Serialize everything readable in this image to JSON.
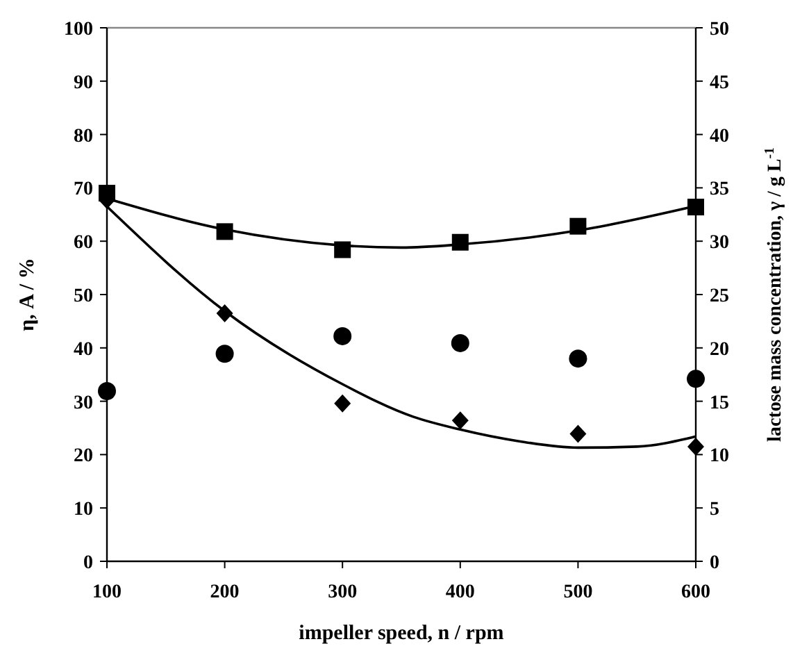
{
  "chart_data": {
    "type": "scatter",
    "xlabel": "impeller speed, n / rpm",
    "ylabel": "η, A / %",
    "y2label": "lactose mass concentration, γ / g L$^{-1}$",
    "x": [
      100,
      200,
      300,
      400,
      500,
      600
    ],
    "xlim": [
      100,
      600
    ],
    "xticks": [
      100,
      200,
      300,
      400,
      500,
      600
    ],
    "ylim": [
      0,
      100
    ],
    "yticks": [
      0,
      10,
      20,
      30,
      40,
      50,
      60,
      70,
      80,
      90,
      100
    ],
    "y2lim": [
      0,
      50
    ],
    "y2ticks": [
      0,
      5,
      10,
      15,
      20,
      25,
      30,
      35,
      40,
      45,
      50
    ],
    "grid": false,
    "series": [
      {
        "type": "scatter",
        "marker": "square",
        "color": "#000000",
        "axis": "y2",
        "values": [
          34.5,
          30.9,
          29.2,
          29.9,
          31.4,
          33.2
        ]
      },
      {
        "type": "scatter",
        "marker": "diamond",
        "color": "#000000",
        "values": [
          67.7,
          46.5,
          29.6,
          26.4,
          23.9,
          21.5
        ]
      },
      {
        "type": "scatter",
        "marker": "circle",
        "color": "#000000",
        "values": [
          31.9,
          38.9,
          42.2,
          40.9,
          38.0,
          34.2
        ]
      },
      {
        "type": "line",
        "marker": "none",
        "color": "#000000",
        "axis": "y2",
        "x": [
          100,
          200,
          300,
          350,
          400,
          500,
          600
        ],
        "values": [
          34.0,
          31.1,
          29.6,
          29.4,
          29.7,
          31.0,
          33.3
        ]
      },
      {
        "type": "line",
        "marker": "none",
        "color": "#000000",
        "x": [
          100,
          200,
          300,
          360,
          400,
          450,
          500,
          550,
          600
        ],
        "values": [
          66.5,
          46.9,
          33.2,
          27.1,
          24.7,
          22.5,
          21.3,
          21.5,
          23.4
        ]
      }
    ]
  }
}
